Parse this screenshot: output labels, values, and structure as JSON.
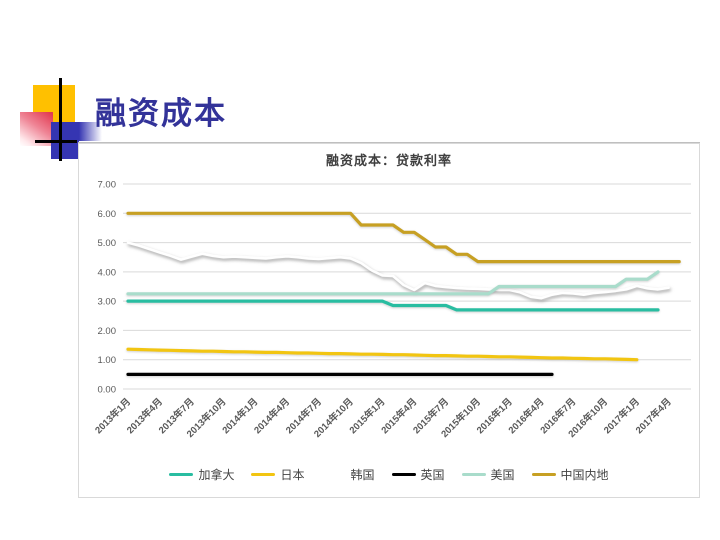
{
  "slide": {
    "title": "融资成本",
    "title_color": "#333399",
    "accent_yellow": "#FFC000",
    "accent_blue": "#3535B2",
    "accent_red": "#E23B52"
  },
  "chart_data": {
    "type": "line",
    "title": "融资成本：贷款利率",
    "xlabel": "",
    "ylabel": "",
    "ylim": [
      0,
      7
    ],
    "grid": true,
    "legend_position": "bottom",
    "ytick_values": [
      0,
      1,
      2,
      3,
      4,
      5,
      6,
      7
    ],
    "ytick_labels": [
      "0.00",
      "1.00",
      "2.00",
      "3.00",
      "4.00",
      "5.00",
      "6.00",
      "7.00"
    ],
    "x_tick_every": 3,
    "x_tick_labels": [
      "2013年1月",
      "2013年4月",
      "2013年7月",
      "2013年10月",
      "2014年1月",
      "2014年4月",
      "2014年7月",
      "2014年10月",
      "2015年1月",
      "2015年4月",
      "2015年7月",
      "2015年10月",
      "2016年1月",
      "2016年4月",
      "2016年7月",
      "2016年10月",
      "2017年1月",
      "2017年4月"
    ],
    "x_is_monthly_from": "2013年1月",
    "n_points": 53,
    "series": [
      {
        "id": "canada",
        "name": "加拿大",
        "color": "#29BDA1",
        "shadow": false,
        "values": [
          3.0,
          3.0,
          3.0,
          3.0,
          3.0,
          3.0,
          3.0,
          3.0,
          3.0,
          3.0,
          3.0,
          3.0,
          3.0,
          3.0,
          3.0,
          3.0,
          3.0,
          3.0,
          3.0,
          3.0,
          3.0,
          3.0,
          3.0,
          3.0,
          3.0,
          2.85,
          2.85,
          2.85,
          2.85,
          2.85,
          2.85,
          2.7,
          2.7,
          2.7,
          2.7,
          2.7,
          2.7,
          2.7,
          2.7,
          2.7,
          2.7,
          2.7,
          2.7,
          2.7,
          2.7,
          2.7,
          2.7,
          2.7,
          2.7,
          2.7,
          2.7,
          null,
          null
        ]
      },
      {
        "id": "japan",
        "name": "日本",
        "color": "#F2C511",
        "shadow": false,
        "values": [
          1.36,
          1.35,
          1.34,
          1.33,
          1.32,
          1.31,
          1.3,
          1.29,
          1.29,
          1.28,
          1.27,
          1.27,
          1.26,
          1.25,
          1.25,
          1.24,
          1.23,
          1.23,
          1.22,
          1.21,
          1.21,
          1.2,
          1.19,
          1.19,
          1.18,
          1.17,
          1.17,
          1.16,
          1.15,
          1.14,
          1.14,
          1.13,
          1.12,
          1.12,
          1.11,
          1.1,
          1.1,
          1.09,
          1.08,
          1.07,
          1.06,
          1.06,
          1.05,
          1.04,
          1.03,
          1.03,
          1.02,
          1.01,
          1.0,
          null,
          null,
          null,
          null
        ]
      },
      {
        "id": "korea",
        "name": "韩国",
        "color": "#FFFFFF",
        "shadow": true,
        "values": [
          5.0,
          4.9,
          4.78,
          4.66,
          4.55,
          4.42,
          4.52,
          4.62,
          4.55,
          4.5,
          4.52,
          4.5,
          4.48,
          4.46,
          4.5,
          4.53,
          4.5,
          4.46,
          4.44,
          4.47,
          4.5,
          4.46,
          4.3,
          4.05,
          3.88,
          3.86,
          3.55,
          3.38,
          3.62,
          3.52,
          3.48,
          3.45,
          3.43,
          3.42,
          3.4,
          3.38,
          3.38,
          3.3,
          3.15,
          3.1,
          3.22,
          3.28,
          3.26,
          3.22,
          3.28,
          3.31,
          3.35,
          3.4,
          3.52,
          3.44,
          3.4,
          3.46,
          null
        ]
      },
      {
        "id": "uk",
        "name": "英国",
        "color": "#000000",
        "shadow": false,
        "values": [
          0.5,
          0.5,
          0.5,
          0.5,
          0.5,
          0.5,
          0.5,
          0.5,
          0.5,
          0.5,
          0.5,
          0.5,
          0.5,
          0.5,
          0.5,
          0.5,
          0.5,
          0.5,
          0.5,
          0.5,
          0.5,
          0.5,
          0.5,
          0.5,
          0.5,
          0.5,
          0.5,
          0.5,
          0.5,
          0.5,
          0.5,
          0.5,
          0.5,
          0.5,
          0.5,
          0.5,
          0.5,
          0.5,
          0.5,
          0.5,
          0.5,
          null,
          null,
          null,
          null,
          null,
          null,
          null,
          null,
          null,
          null,
          null,
          null
        ]
      },
      {
        "id": "usa",
        "name": "美国",
        "color": "#A9DCCB",
        "shadow": false,
        "values": [
          3.25,
          3.25,
          3.25,
          3.25,
          3.25,
          3.25,
          3.25,
          3.25,
          3.25,
          3.25,
          3.25,
          3.25,
          3.25,
          3.25,
          3.25,
          3.25,
          3.25,
          3.25,
          3.25,
          3.25,
          3.25,
          3.25,
          3.25,
          3.25,
          3.25,
          3.25,
          3.25,
          3.25,
          3.25,
          3.25,
          3.25,
          3.25,
          3.25,
          3.25,
          3.25,
          3.5,
          3.5,
          3.5,
          3.5,
          3.5,
          3.5,
          3.5,
          3.5,
          3.5,
          3.5,
          3.5,
          3.5,
          3.75,
          3.75,
          3.75,
          4.0,
          null,
          null
        ]
      },
      {
        "id": "china",
        "name": "中国内地",
        "color": "#C7A023",
        "shadow": false,
        "values": [
          6.0,
          6.0,
          6.0,
          6.0,
          6.0,
          6.0,
          6.0,
          6.0,
          6.0,
          6.0,
          6.0,
          6.0,
          6.0,
          6.0,
          6.0,
          6.0,
          6.0,
          6.0,
          6.0,
          6.0,
          6.0,
          6.0,
          5.6,
          5.6,
          5.6,
          5.6,
          5.35,
          5.35,
          5.1,
          4.85,
          4.85,
          4.6,
          4.6,
          4.35,
          4.35,
          4.35,
          4.35,
          4.35,
          4.35,
          4.35,
          4.35,
          4.35,
          4.35,
          4.35,
          4.35,
          4.35,
          4.35,
          4.35,
          4.35,
          4.35,
          4.35,
          4.35,
          4.35
        ]
      }
    ]
  }
}
